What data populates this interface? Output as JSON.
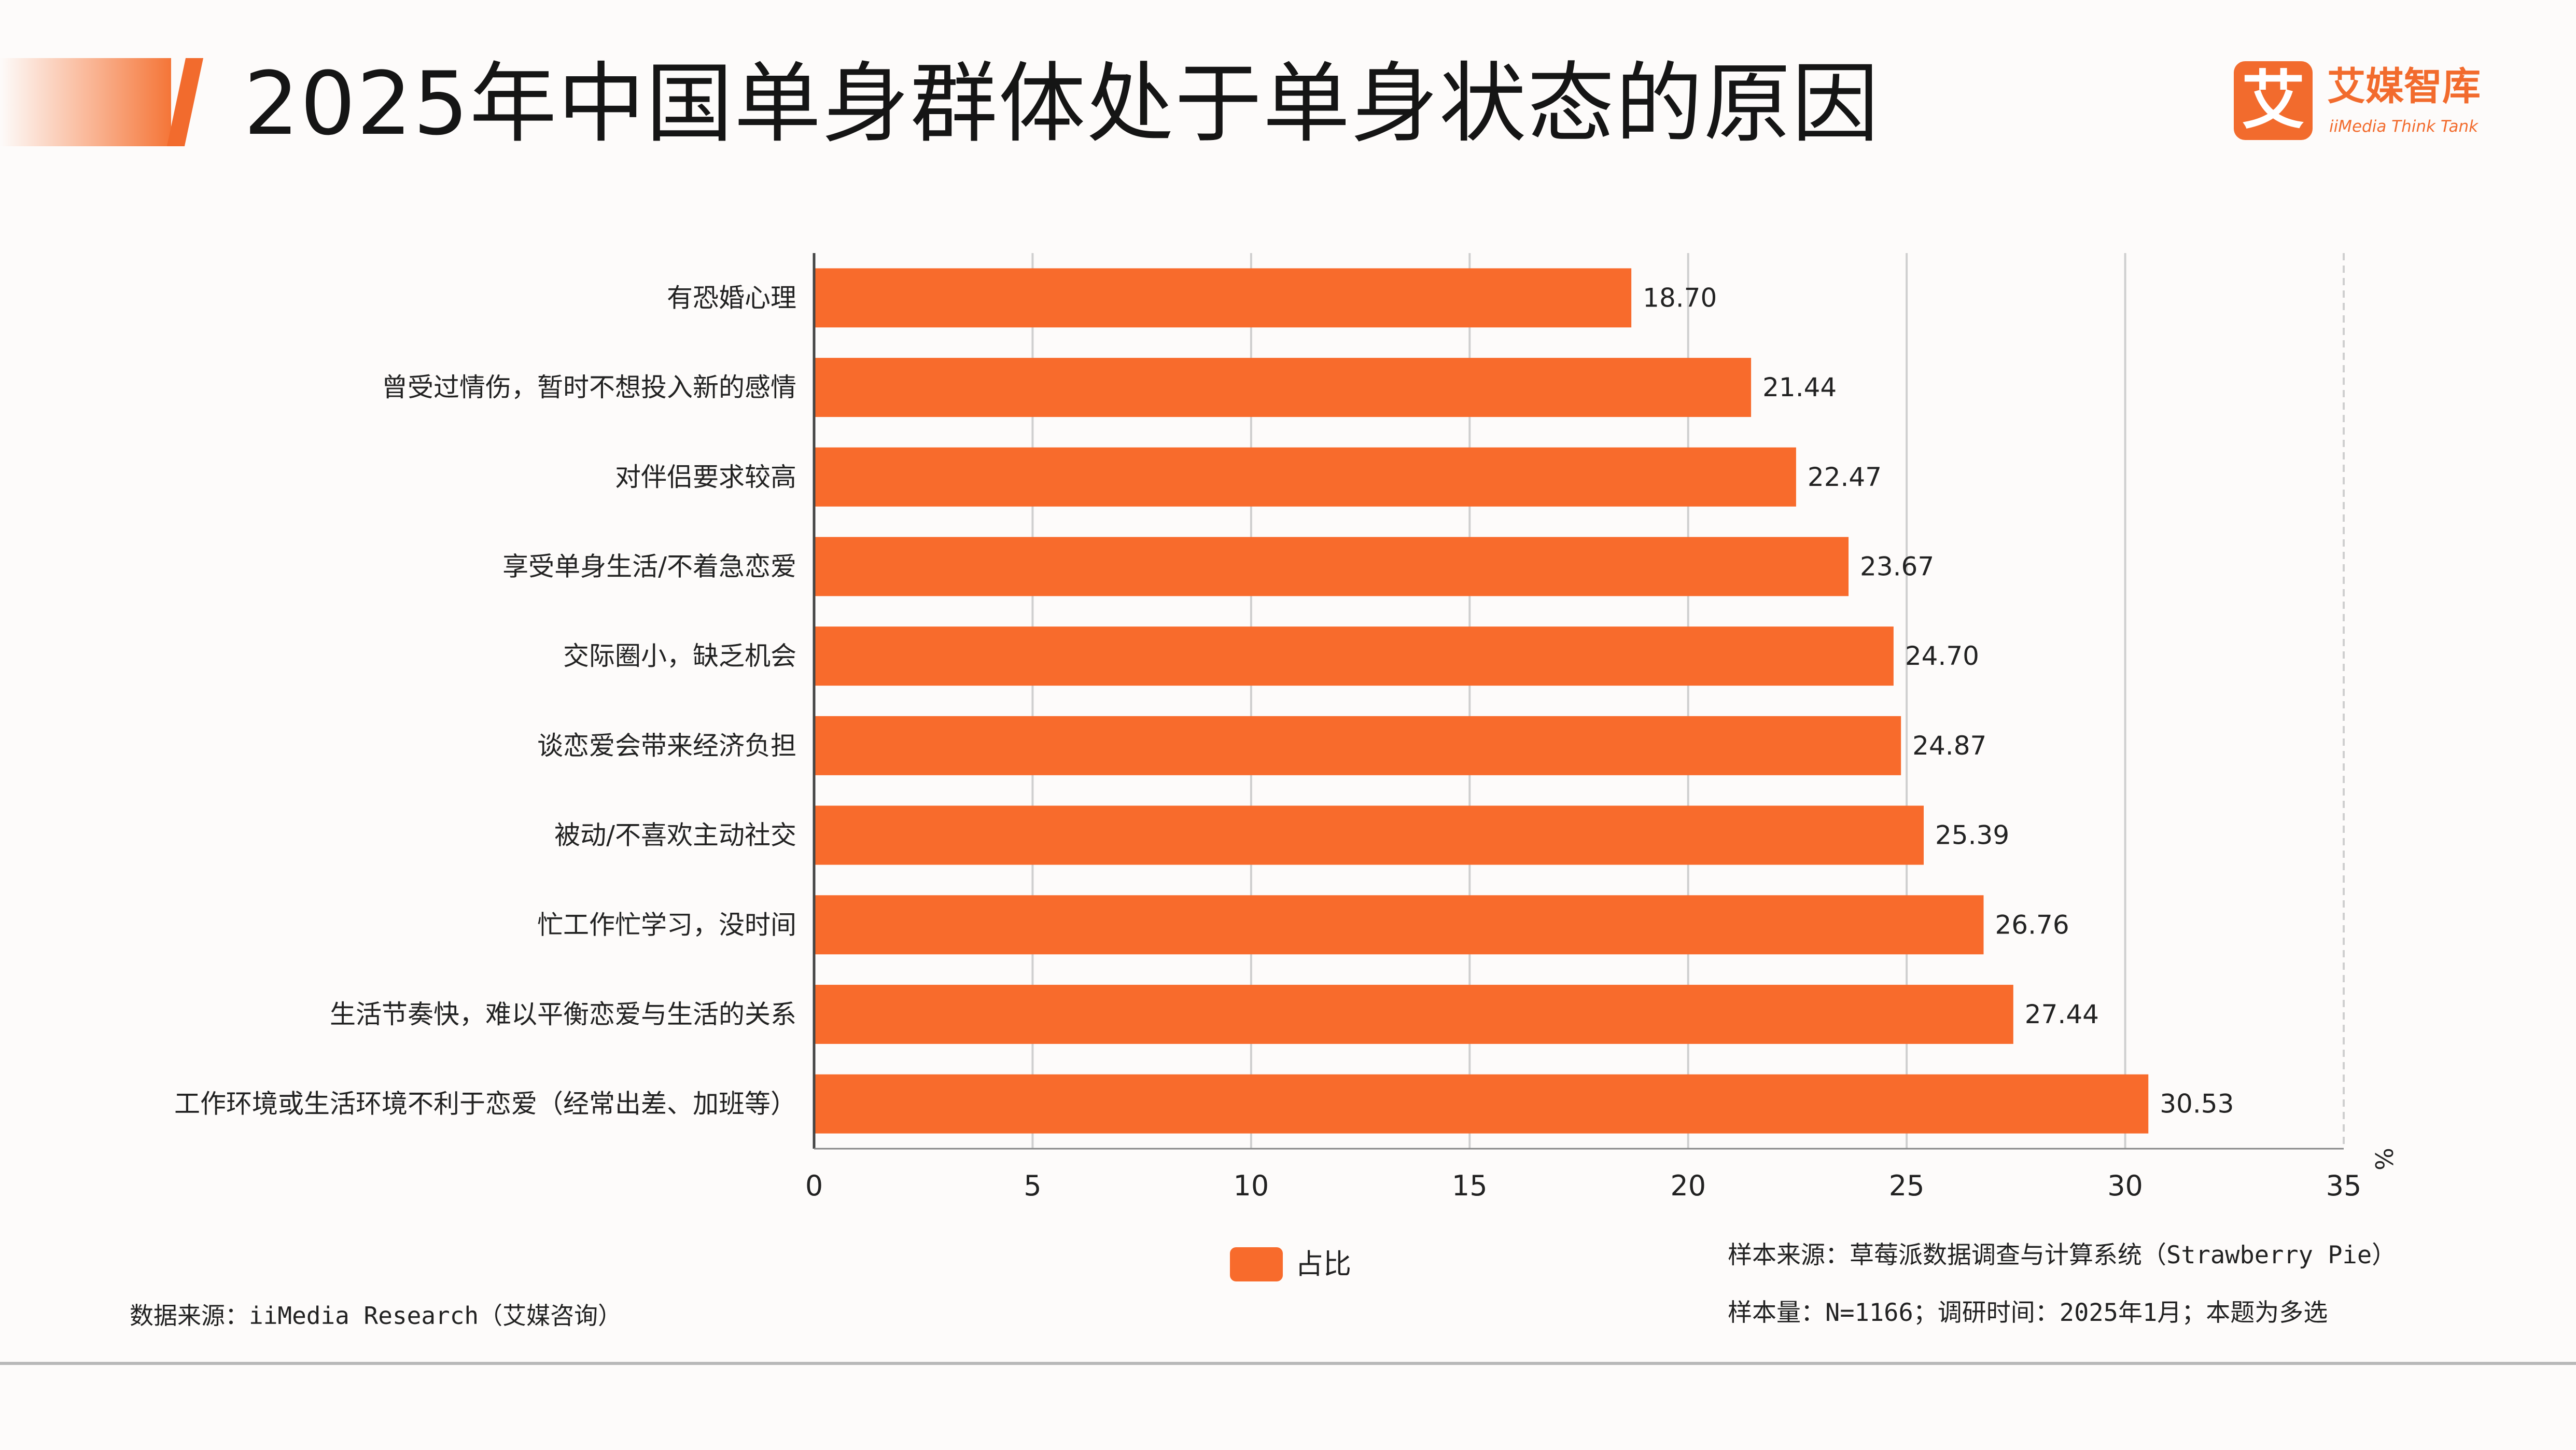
{
  "header": {
    "title": "2025年中国单身群体处于单身状态的原因"
  },
  "logo": {
    "mark": "艾",
    "name": "艾媒智库",
    "subtitle": "iiMedia Think Tank"
  },
  "chart_data": {
    "type": "bar",
    "orientation": "horizontal",
    "categories": [
      "有恐婚心理",
      "曾受过情伤，暂时不想投入新的感情",
      "对伴侣要求较高",
      "享受单身生活/不着急恋爱",
      "交际圈小，缺乏机会",
      "谈恋爱会带来经济负担",
      "被动/不喜欢主动社交",
      "忙工作忙学习，没时间",
      "生活节奏快，难以平衡恋爱与生活的关系",
      "工作环境或生活环境不利于恋爱（经常出差、加班等）"
    ],
    "series": [
      {
        "name": "占比",
        "values": [
          18.7,
          21.44,
          22.47,
          23.67,
          24.7,
          24.87,
          25.39,
          26.76,
          27.44,
          30.53
        ],
        "labels": [
          "18.70",
          "21.44",
          "22.47",
          "23.67",
          "24.70",
          "24.87",
          "25.39",
          "26.76",
          "27.44",
          "30.53"
        ]
      }
    ],
    "xlim": [
      0,
      35
    ],
    "xticks": [
      0,
      5,
      10,
      15,
      20,
      25,
      30,
      35
    ],
    "xunit": "%",
    "grid": true,
    "legend_position": "bottom-center",
    "bar_color": "#F86B2C"
  },
  "footer": {
    "source": "数据来源：iiMedia Research（艾媒咨询）",
    "sample_source": "样本来源：草莓派数据调查与计算系统（Strawberry Pie）",
    "sample_size": "样本量：N=1166；调研时间：2025年1月；本题为多选"
  },
  "colors": {
    "accent": "#F26B2D",
    "bar": "#F86B2C",
    "axis": "#444444",
    "grid": "#cfcfcf"
  }
}
